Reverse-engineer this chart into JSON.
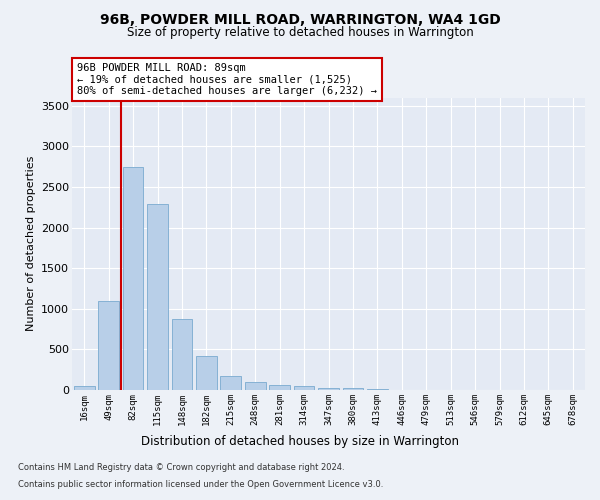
{
  "title": "96B, POWDER MILL ROAD, WARRINGTON, WA4 1GD",
  "subtitle": "Size of property relative to detached houses in Warrington",
  "xlabel": "Distribution of detached houses by size in Warrington",
  "ylabel": "Number of detached properties",
  "categories": [
    "16sqm",
    "49sqm",
    "82sqm",
    "115sqm",
    "148sqm",
    "182sqm",
    "215sqm",
    "248sqm",
    "281sqm",
    "314sqm",
    "347sqm",
    "380sqm",
    "413sqm",
    "446sqm",
    "479sqm",
    "513sqm",
    "546sqm",
    "579sqm",
    "612sqm",
    "645sqm",
    "678sqm"
  ],
  "values": [
    50,
    1100,
    2740,
    2290,
    880,
    420,
    170,
    100,
    60,
    45,
    30,
    20,
    10,
    5,
    3,
    2,
    1,
    1,
    0,
    0,
    0
  ],
  "bar_color": "#b8cfe8",
  "bar_edge_color": "#7aaad0",
  "vline_color": "#cc0000",
  "vline_x": 1.5,
  "annotation_text": "96B POWDER MILL ROAD: 89sqm\n← 19% of detached houses are smaller (1,525)\n80% of semi-detached houses are larger (6,232) →",
  "annotation_box_facecolor": "#ffffff",
  "annotation_box_edgecolor": "#cc0000",
  "ylim": [
    0,
    3600
  ],
  "yticks": [
    0,
    500,
    1000,
    1500,
    2000,
    2500,
    3000,
    3500
  ],
  "footer_line1": "Contains HM Land Registry data © Crown copyright and database right 2024.",
  "footer_line2": "Contains public sector information licensed under the Open Government Licence v3.0.",
  "fig_bg_color": "#edf1f7",
  "plot_bg_color": "#e4eaf4"
}
